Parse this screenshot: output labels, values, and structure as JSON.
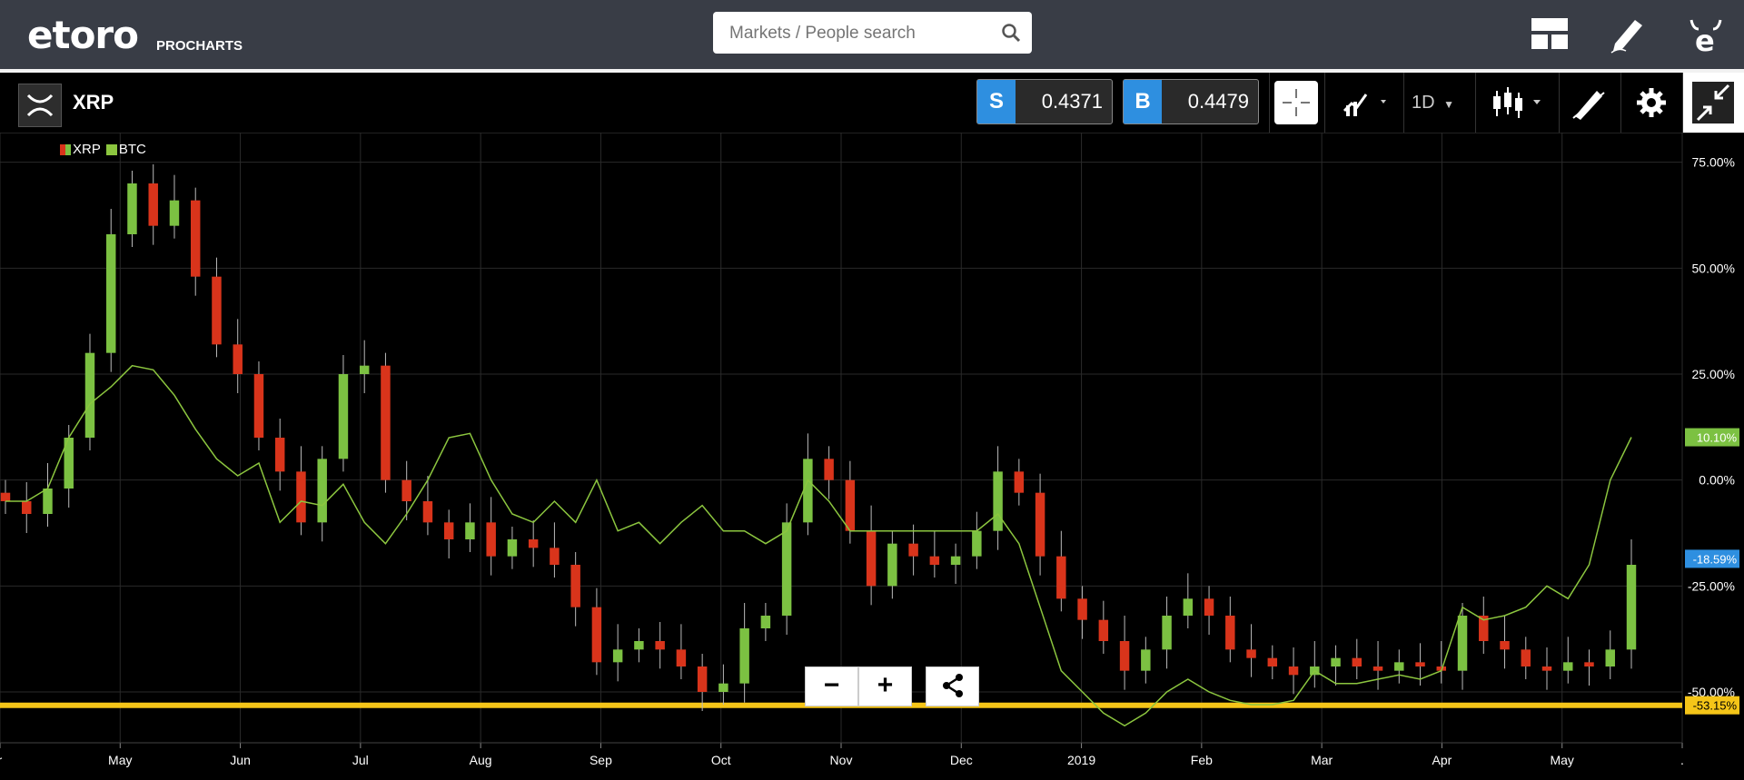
{
  "header": {
    "logo_text": "etoro",
    "logo_sub": "PROCHARTS",
    "search_placeholder": "Markets / People search",
    "icons": [
      "layout-icon",
      "edit-icon",
      "etoro-profile-icon"
    ]
  },
  "instrument": {
    "name": "XRP",
    "sell_label": "S",
    "sell_price": "0.4371",
    "buy_label": "B",
    "buy_price": "0.4479",
    "timeframe": "1D"
  },
  "toolbar": {
    "icons": [
      "crosshair-icon",
      "compare-icon",
      "timeframe-dropdown",
      "candlestick-icon",
      "draw-icon",
      "gear-icon",
      "collapse-icon"
    ]
  },
  "colors": {
    "up": "#7cc142",
    "down": "#d9341b",
    "btc_line": "#8cc63f",
    "hline": "#f5c518",
    "sell_blue": "#2e8fe0"
  },
  "zoom": {
    "minus": "−",
    "plus": "+"
  },
  "chart_data": {
    "type": "line",
    "legend": [
      "XRP",
      "BTC"
    ],
    "legend_placement": "top-left",
    "x_ticks": [
      "r",
      "May",
      "Jun",
      "Jul",
      "Aug",
      "Sep",
      "Oct",
      "Nov",
      "Dec",
      "2019",
      "Feb",
      "Mar",
      "Apr",
      "May",
      "."
    ],
    "y_ticks": [
      "75.00%",
      "50.00%",
      "25.00%",
      "0.00%",
      "-25.00%",
      "-50.00%"
    ],
    "ylim": [
      -62,
      82
    ],
    "y_tick_values": [
      75,
      50,
      25,
      0,
      -25,
      -50
    ],
    "badges": [
      {
        "label": "10.10%",
        "value": 10.1,
        "color": "#7cc142"
      },
      {
        "label": "-18.59%",
        "value": -18.59,
        "color": "#2e8fe0"
      },
      {
        "label": "-53.15%",
        "value": -53.15,
        "color": "#f5c518"
      }
    ],
    "hline_value": -53.15,
    "series": [
      {
        "name": "XRP",
        "style": "candlestick",
        "values": [
          -5,
          -8,
          -2,
          10,
          30,
          58,
          70,
          60,
          66,
          48,
          32,
          25,
          10,
          2,
          -10,
          5,
          25,
          27,
          0,
          -5,
          -10,
          -14,
          -10,
          -18,
          -14,
          -16,
          -20,
          -30,
          -43,
          -40,
          -38,
          -40,
          -44,
          -50,
          -48,
          -35,
          -32,
          -10,
          5,
          0,
          -12,
          -25,
          -15,
          -18,
          -20,
          -18,
          -12,
          2,
          -3,
          -18,
          -28,
          -33,
          -38,
          -45,
          -40,
          -32,
          -28,
          -32,
          -40,
          -42,
          -44,
          -46,
          -44,
          -42,
          -44,
          -45,
          -43,
          -44,
          -45,
          -32,
          -38,
          -40,
          -44,
          -45,
          -43,
          -44,
          -40,
          -20
        ]
      },
      {
        "name": "BTC",
        "style": "line",
        "values": [
          -5,
          -5,
          -2,
          10,
          18,
          22,
          27,
          26,
          20,
          12,
          5,
          1,
          4,
          -10,
          -5,
          -6,
          -1,
          -10,
          -15,
          -8,
          0,
          10,
          11,
          0,
          -8,
          -10,
          -5,
          -10,
          0,
          -12,
          -10,
          -15,
          -10,
          -6,
          -12,
          -12,
          -15,
          -12,
          0,
          -5,
          -12,
          -12,
          -12,
          -12,
          -12,
          -12,
          -12,
          -8,
          -15,
          -30,
          -45,
          -50,
          -55,
          -58,
          -55,
          -50,
          -47,
          -50,
          -52,
          -53,
          -53,
          -52,
          -45,
          -48,
          -48,
          -47,
          -46,
          -47,
          -45,
          -30,
          -33,
          -32,
          -30,
          -25,
          -28,
          -20,
          0,
          10.1
        ]
      }
    ]
  }
}
